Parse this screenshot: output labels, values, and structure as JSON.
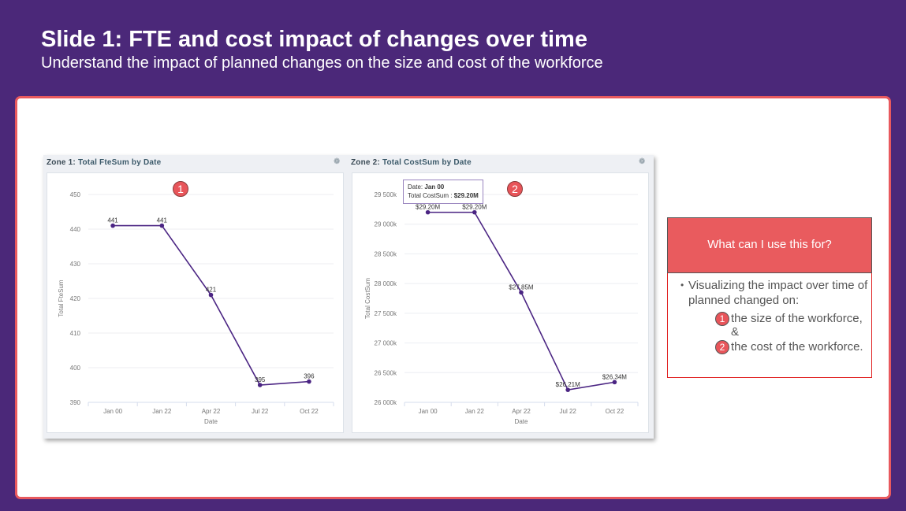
{
  "slide": {
    "title": "Slide 1: FTE and cost impact of changes over time",
    "subtitle": "Understand the impact of planned changes on the size and cost of the workforce"
  },
  "zones": [
    {
      "prefix": "Zone 1: ",
      "title": "Total FteSum by Date",
      "badge": "1"
    },
    {
      "prefix": "Zone 2: ",
      "title": "Total CostSum by Date",
      "badge": "2",
      "tooltip": {
        "date_label": "Date: ",
        "date": "Jan 00",
        "value_label": "Total CostSum : ",
        "value": "$29.20M"
      }
    }
  ],
  "info": {
    "header": "What can I use this for?",
    "bullet": "Visualizing the impact over time of planned changed on:",
    "items": [
      {
        "badge": "1",
        "text": "the size of the workforce,"
      },
      {
        "text": "&"
      },
      {
        "badge": "2",
        "text": "the cost of the workforce."
      }
    ]
  },
  "colors": {
    "line": "#4b2583",
    "accent": "#e95b5e",
    "bg": "#4b2879"
  },
  "chart_data": [
    {
      "type": "line",
      "title": "Total FteSum by Date",
      "xlabel": "Date",
      "ylabel": "Total FteSum",
      "categories": [
        "Jan 00",
        "Jan 22",
        "Apr 22",
        "Jul 22",
        "Oct 22"
      ],
      "values": [
        441,
        441,
        421,
        395,
        396
      ],
      "labels": [
        "441",
        "441",
        "421",
        "395",
        "396"
      ],
      "ylim": [
        390,
        450
      ],
      "yticks": [
        390,
        400,
        410,
        420,
        430,
        440,
        450
      ],
      "ytick_labels": [
        "390",
        "400",
        "410",
        "420",
        "430",
        "440",
        "450"
      ],
      "grid": true
    },
    {
      "type": "line",
      "title": "Total CostSum by Date",
      "xlabel": "Date",
      "ylabel": "Total CostSum",
      "categories": [
        "Jan 00",
        "Jan 22",
        "Apr 22",
        "Jul 22",
        "Oct 22"
      ],
      "values": [
        29200,
        29200,
        27850,
        26210,
        26340
      ],
      "labels": [
        "$29.20M",
        "$29.20M",
        "$27.85M",
        "$26.21M",
        "$26.34M"
      ],
      "ylim": [
        26000,
        29500
      ],
      "yticks": [
        26000,
        26500,
        27000,
        27500,
        28000,
        28500,
        29000,
        29500
      ],
      "ytick_labels": [
        "26 000k",
        "26 500k",
        "27 000k",
        "27 500k",
        "28 000k",
        "28 500k",
        "29 000k",
        "29 500k"
      ],
      "grid": true
    }
  ]
}
